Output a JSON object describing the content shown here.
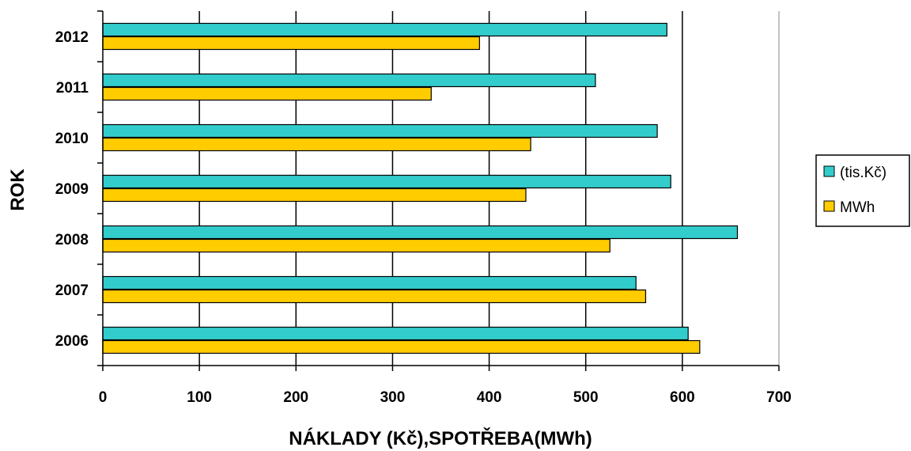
{
  "chart_data": {
    "type": "bar",
    "orientation": "horizontal",
    "categories": [
      "2006",
      "2007",
      "2008",
      "2009",
      "2010",
      "2011",
      "2012"
    ],
    "series": [
      {
        "name": "(tis.Kč)",
        "values": [
          606,
          552,
          657,
          588,
          574,
          510,
          584
        ]
      },
      {
        "name": "MWh",
        "values": [
          618,
          562,
          525,
          438,
          443,
          340,
          390
        ]
      }
    ],
    "xlabel": "NÁKLADY (Kč),SPOTŘEBA(MWh)",
    "ylabel": "ROK",
    "xlim": [
      0,
      700
    ],
    "xticks": [
      "0",
      "100",
      "200",
      "300",
      "400",
      "500",
      "600",
      "700"
    ],
    "grid": "vertical",
    "legend_position": "right",
    "colors": {
      "(tis.Kč)": "#33CCCC",
      "MWh": "#FFCC00"
    }
  }
}
